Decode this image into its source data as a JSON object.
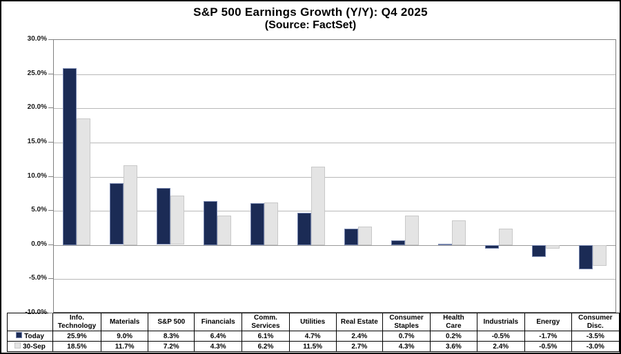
{
  "title": "S&P 500 Earnings Growth (Y/Y): Q4 2025",
  "subtitle": "(Source: FactSet)",
  "chart_data": {
    "type": "bar",
    "title": "S&P 500 Earnings Growth (Y/Y): Q4 2025",
    "subtitle": "(Source: FactSet)",
    "categories": [
      "Info. Technology",
      "Materials",
      "S&P 500",
      "Financials",
      "Comm. Services",
      "Utilities",
      "Real Estate",
      "Consumer Staples",
      "Health Care",
      "Industrials",
      "Energy",
      "Consumer Disc."
    ],
    "category_labels": [
      "Info.\nTechnology",
      "Materials",
      "S&P 500",
      "Financials",
      "Comm.\nServices",
      "Utilities",
      "Real Estate",
      "Consumer\nStaples",
      "Health\nCare",
      "Industrials",
      "Energy",
      "Consumer\nDisc."
    ],
    "series": [
      {
        "name": "Today",
        "values": [
          25.9,
          9.0,
          8.3,
          6.4,
          6.1,
          4.7,
          2.4,
          0.7,
          0.2,
          -0.5,
          -1.7,
          -3.5
        ],
        "color": "#1b2b55",
        "border_color": "#7584ad"
      },
      {
        "name": "30-Sep",
        "values": [
          18.5,
          11.7,
          7.2,
          4.3,
          6.2,
          11.5,
          2.7,
          4.3,
          3.6,
          2.4,
          -0.5,
          -3.0
        ],
        "color": "#e4e4e4",
        "border_color": "#c8c8c8"
      }
    ],
    "xlabel": "",
    "ylabel": "",
    "ylim": [
      -10,
      30
    ],
    "ytick_step": 5,
    "yticks": [
      "30.0%",
      "25.0%",
      "20.0%",
      "15.0%",
      "10.0%",
      "5.0%",
      "0.0%",
      "-5.0%",
      "-10.0%"
    ],
    "value_suffix": "%",
    "grid": true,
    "legend_position": "table-left",
    "data_table_shown": true
  },
  "colors": {
    "bar_today": "#1b2b55",
    "bar_30sep": "#e4e4e4",
    "gridline": "#b8b8b8",
    "zero_line": "#999999",
    "plot_border": "#808080",
    "table_border": "#000000",
    "text": "#000000",
    "background": "#ffffff"
  }
}
